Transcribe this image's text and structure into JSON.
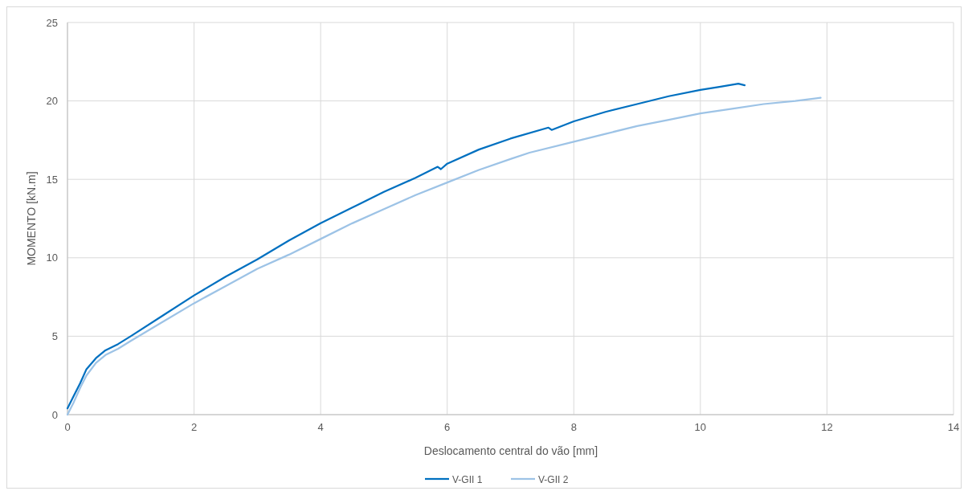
{
  "chart_data": {
    "type": "line",
    "xlabel": "Deslocamento central do vão [mm]",
    "ylabel": "MOMENTO [kN.m]",
    "xlim": [
      0,
      14
    ],
    "xticks": [
      0,
      2,
      4,
      6,
      8,
      10,
      12,
      14
    ],
    "ylim": [
      0,
      25
    ],
    "yticks": [
      0,
      5,
      10,
      15,
      20,
      25
    ],
    "grid": true,
    "legend": "bottom",
    "marker": "none",
    "line_style": "solid",
    "series": [
      {
        "name": "V-GII 1",
        "color": "#0070c0",
        "x": [
          0,
          0.1,
          0.2,
          0.3,
          0.45,
          0.6,
          0.8,
          1,
          1.5,
          2,
          2.5,
          3,
          3.5,
          4,
          4.5,
          5,
          5.5,
          5.85,
          5.9,
          6,
          6.5,
          7,
          7.6,
          7.65,
          8,
          8.5,
          9,
          9.5,
          10,
          10.3,
          10.6,
          10.7
        ],
        "values": [
          0.4,
          1.2,
          2.0,
          2.9,
          3.6,
          4.1,
          4.5,
          5.0,
          6.3,
          7.6,
          8.8,
          9.9,
          11.1,
          12.2,
          13.2,
          14.2,
          15.1,
          15.8,
          15.65,
          16.0,
          16.9,
          17.6,
          18.3,
          18.15,
          18.7,
          19.3,
          19.8,
          20.3,
          20.7,
          20.9,
          21.1,
          21.0
        ]
      },
      {
        "name": "V-GII 2",
        "color": "#9dc3e6",
        "x": [
          0,
          0.1,
          0.2,
          0.3,
          0.45,
          0.6,
          0.8,
          1,
          1.5,
          2,
          2.5,
          3,
          3.5,
          4,
          4.5,
          5,
          5.5,
          6,
          6.5,
          7,
          7.3,
          8,
          8.5,
          9,
          9.5,
          10,
          10.5,
          11,
          11.5,
          11.9
        ],
        "values": [
          0,
          0.8,
          1.7,
          2.5,
          3.3,
          3.8,
          4.2,
          4.7,
          5.9,
          7.1,
          8.2,
          9.3,
          10.2,
          11.2,
          12.2,
          13.1,
          14.0,
          14.8,
          15.6,
          16.3,
          16.7,
          17.4,
          17.9,
          18.4,
          18.8,
          19.2,
          19.5,
          19.8,
          20.0,
          20.2
        ]
      }
    ]
  }
}
